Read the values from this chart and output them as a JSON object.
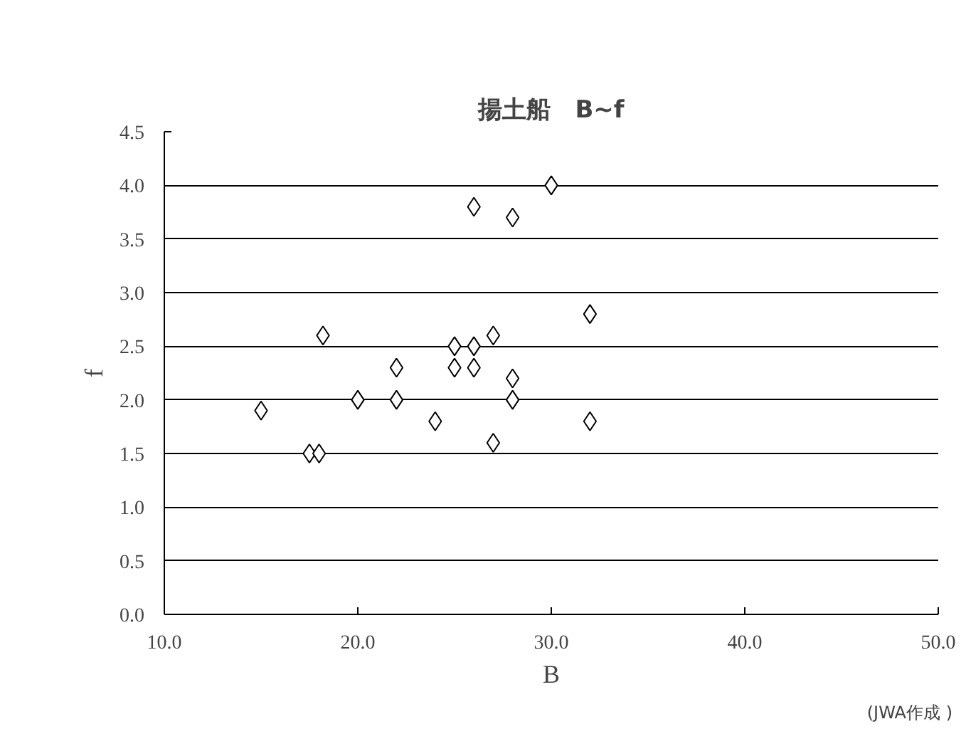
{
  "chart_data": {
    "type": "scatter",
    "title": "揚土船　B~f",
    "xlabel": "B",
    "ylabel": "f",
    "annotations": [
      "(JWA作成 )"
    ],
    "x": [
      15.0,
      17.5,
      18.0,
      18.2,
      20.0,
      22.0,
      22.0,
      24.0,
      25.0,
      25.0,
      26.0,
      26.0,
      26.0,
      27.0,
      27.0,
      28.0,
      28.0,
      28.0,
      30.0,
      32.0,
      32.0
    ],
    "series": [
      {
        "color": "#ffffff",
        "values": [
          1.9,
          1.5,
          1.5,
          2.6,
          2.0,
          2.3,
          2.0,
          1.8,
          2.5,
          2.3,
          2.5,
          2.3,
          3.8,
          2.6,
          1.6,
          3.7,
          2.2,
          2.0,
          4.0,
          2.8,
          1.8
        ]
      }
    ],
    "xlim": [
      10,
      50
    ],
    "ylim": [
      0,
      4.5
    ],
    "xticks": [
      {
        "value": 10,
        "label": "10.0"
      },
      {
        "value": 20,
        "label": "20.0"
      },
      {
        "value": 30,
        "label": "30.0"
      },
      {
        "value": 40,
        "label": "40.0"
      },
      {
        "value": 50,
        "label": "50.0"
      }
    ],
    "yticks": [
      {
        "value": 0,
        "label": "0.0"
      },
      {
        "value": 0.5,
        "label": "0.5"
      },
      {
        "value": 1,
        "label": "1.0"
      },
      {
        "value": 1.5,
        "label": "1.5"
      },
      {
        "value": 2,
        "label": "2.0"
      },
      {
        "value": 2.5,
        "label": "2.5"
      },
      {
        "value": 3,
        "label": "3.0"
      },
      {
        "value": 3.5,
        "label": "3.5"
      },
      {
        "value": 4,
        "label": "4.0"
      },
      {
        "value": 4.5,
        "label": "4.5"
      }
    ],
    "grid": "y",
    "marker": "diamond"
  }
}
